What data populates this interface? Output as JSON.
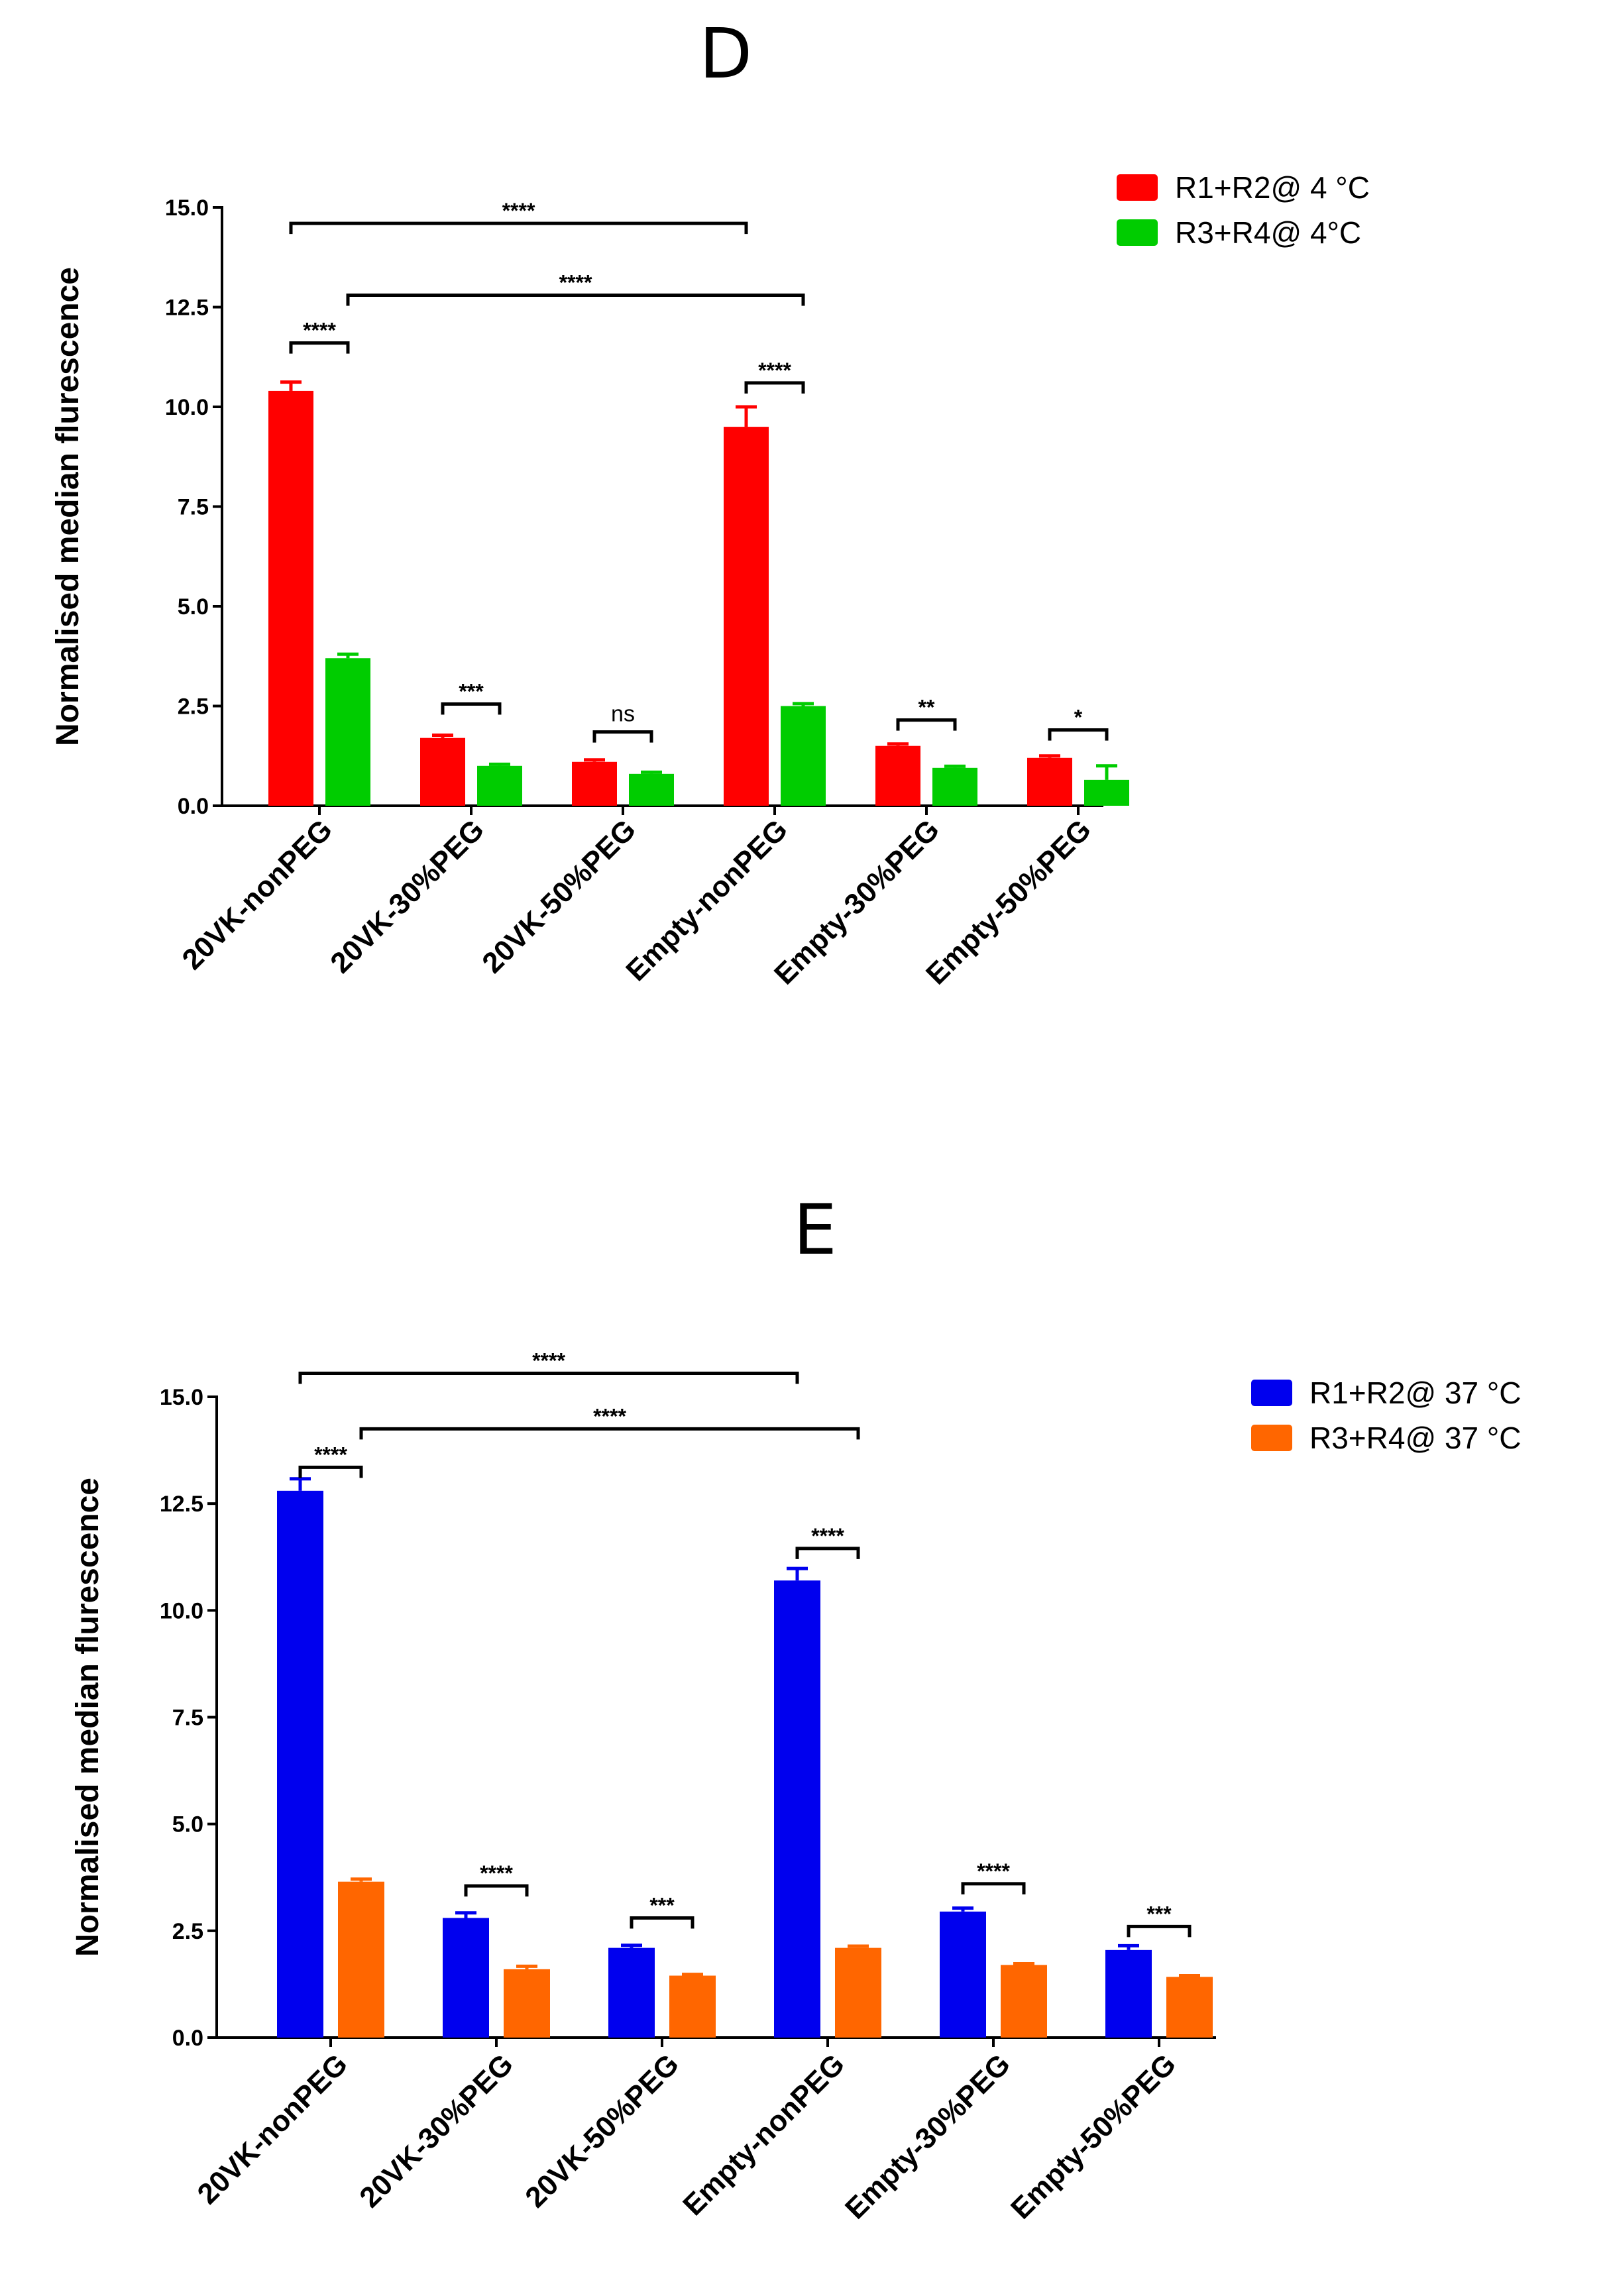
{
  "chart_data": [
    {
      "type": "bar",
      "panel": "D",
      "categories": [
        "20VK-nonPEG",
        "20VK-30%PEG",
        "20VK-50%PEG",
        "Empty-nonPEG",
        "Empty-30%PEG",
        "Empty-50%PEG"
      ],
      "series": [
        {
          "name": "R1+R2@ 4 °C",
          "color": "#ff0000",
          "values": [
            10.4,
            1.7,
            1.1,
            9.5,
            1.5,
            1.2
          ],
          "errors": [
            0.22,
            0.07,
            0.05,
            0.5,
            0.05,
            0.05
          ]
        },
        {
          "name": "R3+R4@ 4°C",
          "color": "#00cc00",
          "values": [
            3.7,
            1.0,
            0.8,
            2.5,
            0.95,
            0.65
          ],
          "errors": [
            0.1,
            0.04,
            0.04,
            0.06,
            0.04,
            0.35
          ]
        }
      ],
      "xlabel": "",
      "ylabel": "Normalised median flurescence",
      "ylim": [
        0,
        15
      ],
      "yticks": [
        "0.0",
        "2.5",
        "5.0",
        "7.5",
        "10.0",
        "12.5",
        "15.0"
      ],
      "legend": "top-right",
      "significance": [
        {
          "label": "****",
          "from": [
            0,
            0
          ],
          "to": [
            3,
            0
          ],
          "level": 14.6
        },
        {
          "label": "****",
          "from": [
            0,
            1
          ],
          "to": [
            3,
            1
          ],
          "level": 12.8
        },
        {
          "label": "****",
          "from": [
            0,
            0
          ],
          "to": [
            0,
            1
          ],
          "level": 11.6
        },
        {
          "label": "***",
          "from": [
            1,
            0
          ],
          "to": [
            1,
            1
          ],
          "level": 2.55
        },
        {
          "label": "ns",
          "from": [
            2,
            0
          ],
          "to": [
            2,
            1
          ],
          "level": 1.85
        },
        {
          "label": "****",
          "from": [
            3,
            0
          ],
          "to": [
            3,
            1
          ],
          "level": 10.6
        },
        {
          "label": "**",
          "from": [
            4,
            0
          ],
          "to": [
            4,
            1
          ],
          "level": 2.15
        },
        {
          "label": "*",
          "from": [
            5,
            0
          ],
          "to": [
            5,
            1
          ],
          "level": 1.9
        }
      ]
    },
    {
      "type": "bar",
      "panel": "E",
      "categories": [
        "20VK-nonPEG",
        "20VK-30%PEG",
        "20VK-50%PEG",
        "Empty-nonPEG",
        "Empty-30%PEG",
        "Empty-50%PEG"
      ],
      "series": [
        {
          "name": "R1+R2@ 37 °C",
          "color": "#0000ee",
          "values": [
            12.8,
            2.8,
            2.1,
            10.7,
            2.95,
            2.05
          ],
          "errors": [
            0.28,
            0.12,
            0.06,
            0.28,
            0.08,
            0.1
          ]
        },
        {
          "name": "R3+R4@ 37 °C",
          "color": "#ff6600",
          "values": [
            3.65,
            1.6,
            1.45,
            2.1,
            1.7,
            1.42
          ],
          "errors": [
            0.06,
            0.07,
            0.03,
            0.04,
            0.03,
            0.03
          ]
        }
      ],
      "xlabel": "",
      "ylabel": "Normalised median flurescence",
      "ylim": [
        0,
        15
      ],
      "yticks": [
        "0.0",
        "2.5",
        "5.0",
        "7.5",
        "10.0",
        "12.5",
        "15.0"
      ],
      "legend": "top-right",
      "significance": [
        {
          "label": "****",
          "from": [
            0,
            0
          ],
          "to": [
            3,
            0
          ],
          "level": 15.55
        },
        {
          "label": "****",
          "from": [
            0,
            1
          ],
          "to": [
            3,
            1
          ],
          "level": 14.25
        },
        {
          "label": "****",
          "from": [
            0,
            0
          ],
          "to": [
            0,
            1
          ],
          "level": 13.35
        },
        {
          "label": "****",
          "from": [
            1,
            0
          ],
          "to": [
            1,
            1
          ],
          "level": 3.55
        },
        {
          "label": "***",
          "from": [
            2,
            0
          ],
          "to": [
            2,
            1
          ],
          "level": 2.8
        },
        {
          "label": "****",
          "from": [
            3,
            0
          ],
          "to": [
            3,
            1
          ],
          "level": 11.45
        },
        {
          "label": "****",
          "from": [
            4,
            0
          ],
          "to": [
            4,
            1
          ],
          "level": 3.6
        },
        {
          "label": "***",
          "from": [
            5,
            0
          ],
          "to": [
            5,
            1
          ],
          "level": 2.6
        }
      ]
    }
  ]
}
